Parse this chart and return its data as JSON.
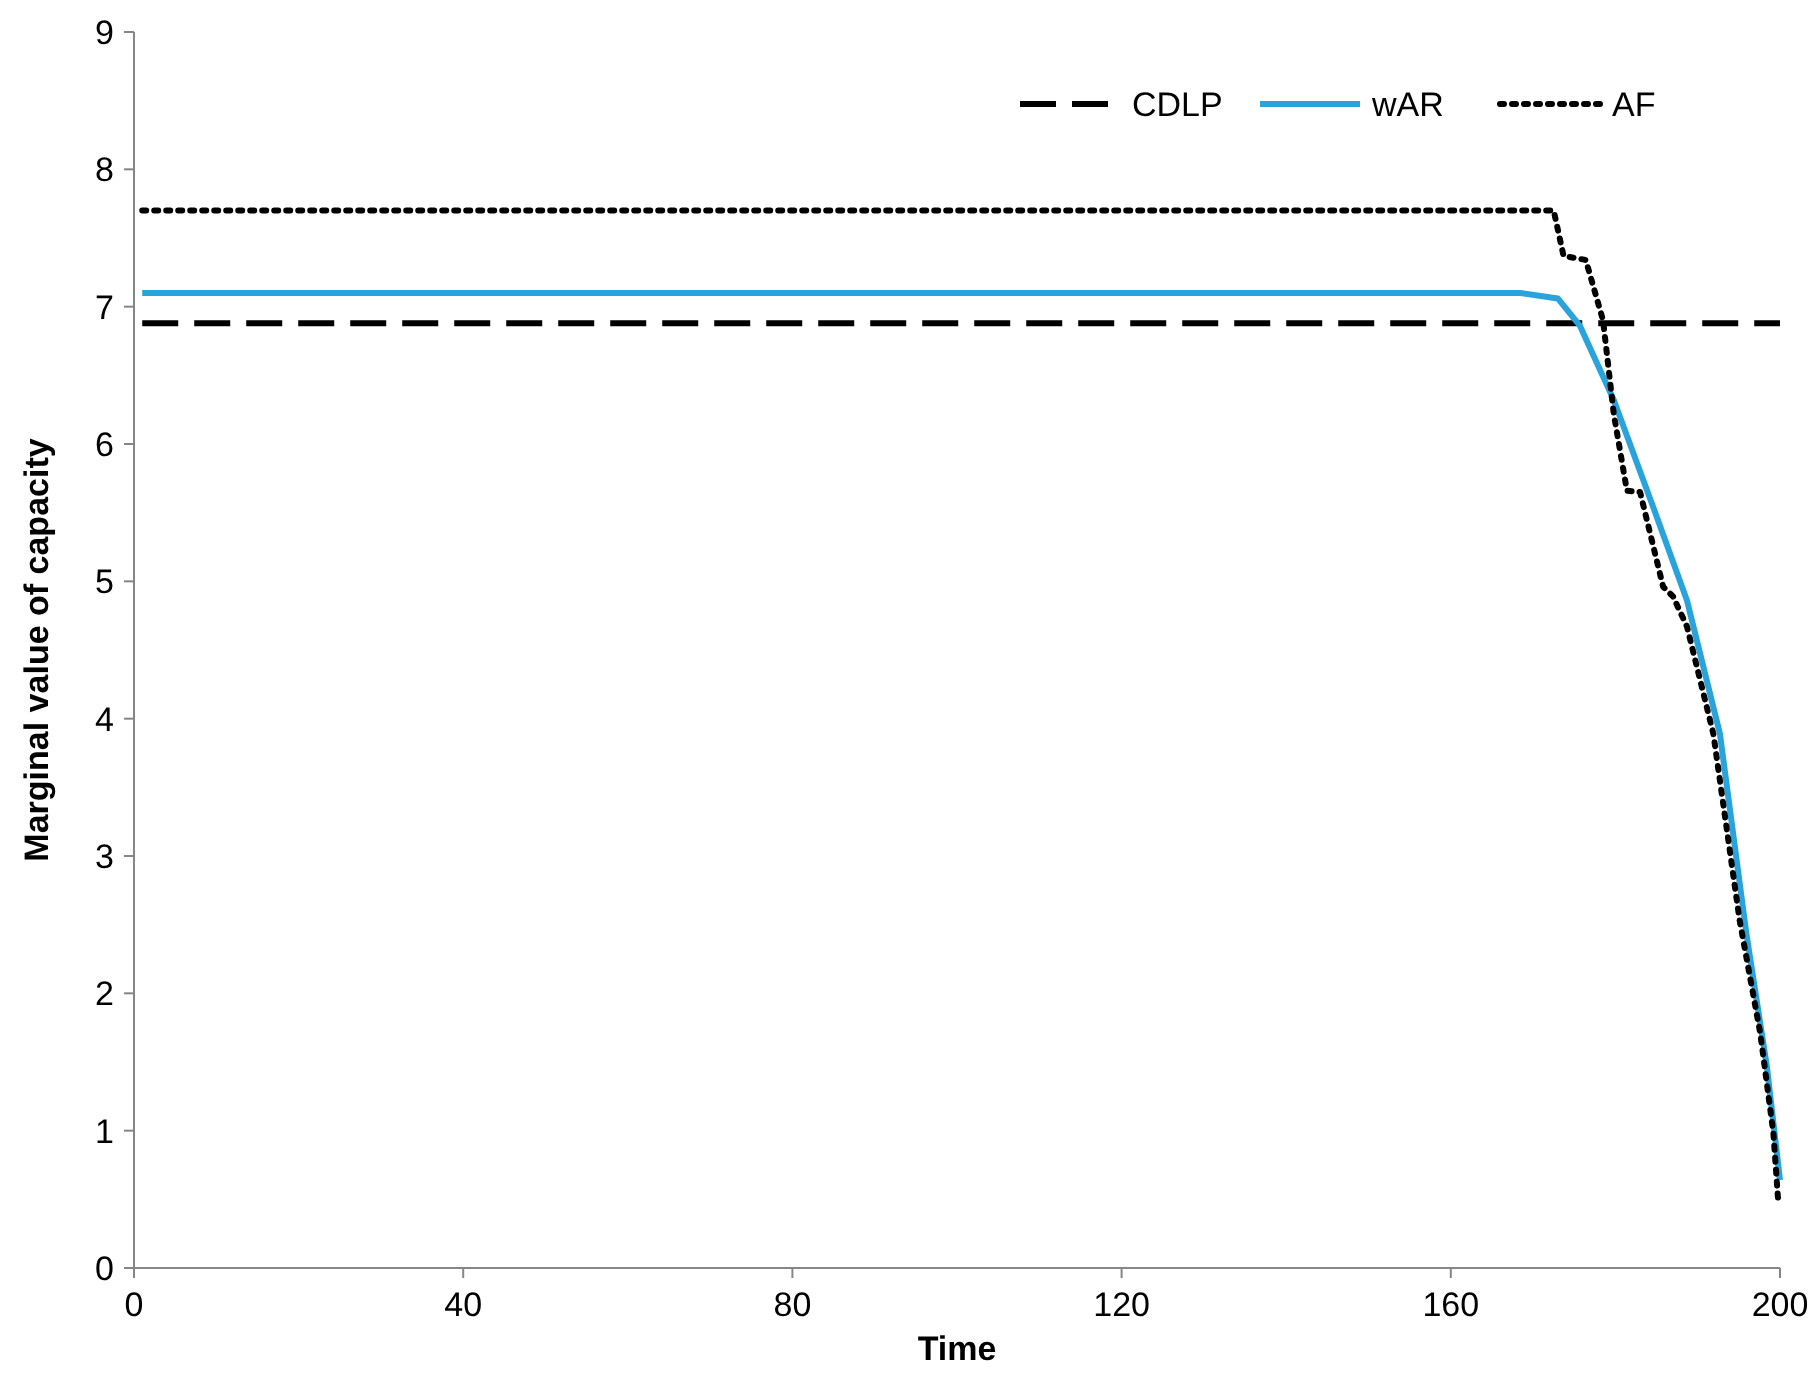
{
  "chart_data": {
    "type": "line",
    "xlabel": "Time",
    "ylabel": "Marginal value of capacity",
    "xlim": [
      0,
      200
    ],
    "ylim": [
      0,
      9
    ],
    "xticks": [
      0,
      40,
      80,
      120,
      160,
      200
    ],
    "yticks": [
      0,
      1,
      2,
      3,
      4,
      5,
      6,
      7,
      8,
      9
    ],
    "grid": false,
    "legend": "top right",
    "series": [
      {
        "name": "CDLP",
        "color": "#000000",
        "line_style": "dashed",
        "x": [
          1,
          200
        ],
        "values": [
          6.88,
          6.88
        ]
      },
      {
        "name": "wAR",
        "color": "#29a3dc",
        "line_style": "solid",
        "x": [
          1,
          168.4,
          173,
          175.7,
          179.8,
          184.6,
          188.7,
          192.7,
          195.9,
          198.4,
          200
        ],
        "values": [
          7.1,
          7.1,
          7.06,
          6.86,
          6.32,
          5.54,
          4.86,
          3.89,
          2.44,
          1.47,
          0.64
        ]
      },
      {
        "name": "AF",
        "color": "#000000",
        "line_style": "dotted",
        "x": [
          1,
          172.5,
          173.7,
          176.4,
          178.5,
          179.8,
          181.4,
          183,
          185.8,
          187,
          188.7,
          191.9,
          195.1,
          197.6,
          199.2,
          199.8
        ],
        "values": [
          7.7,
          7.7,
          7.37,
          7.34,
          6.9,
          6.22,
          5.66,
          5.65,
          4.96,
          4.89,
          4.67,
          3.89,
          2.53,
          1.71,
          0.98,
          0.47
        ]
      }
    ]
  }
}
